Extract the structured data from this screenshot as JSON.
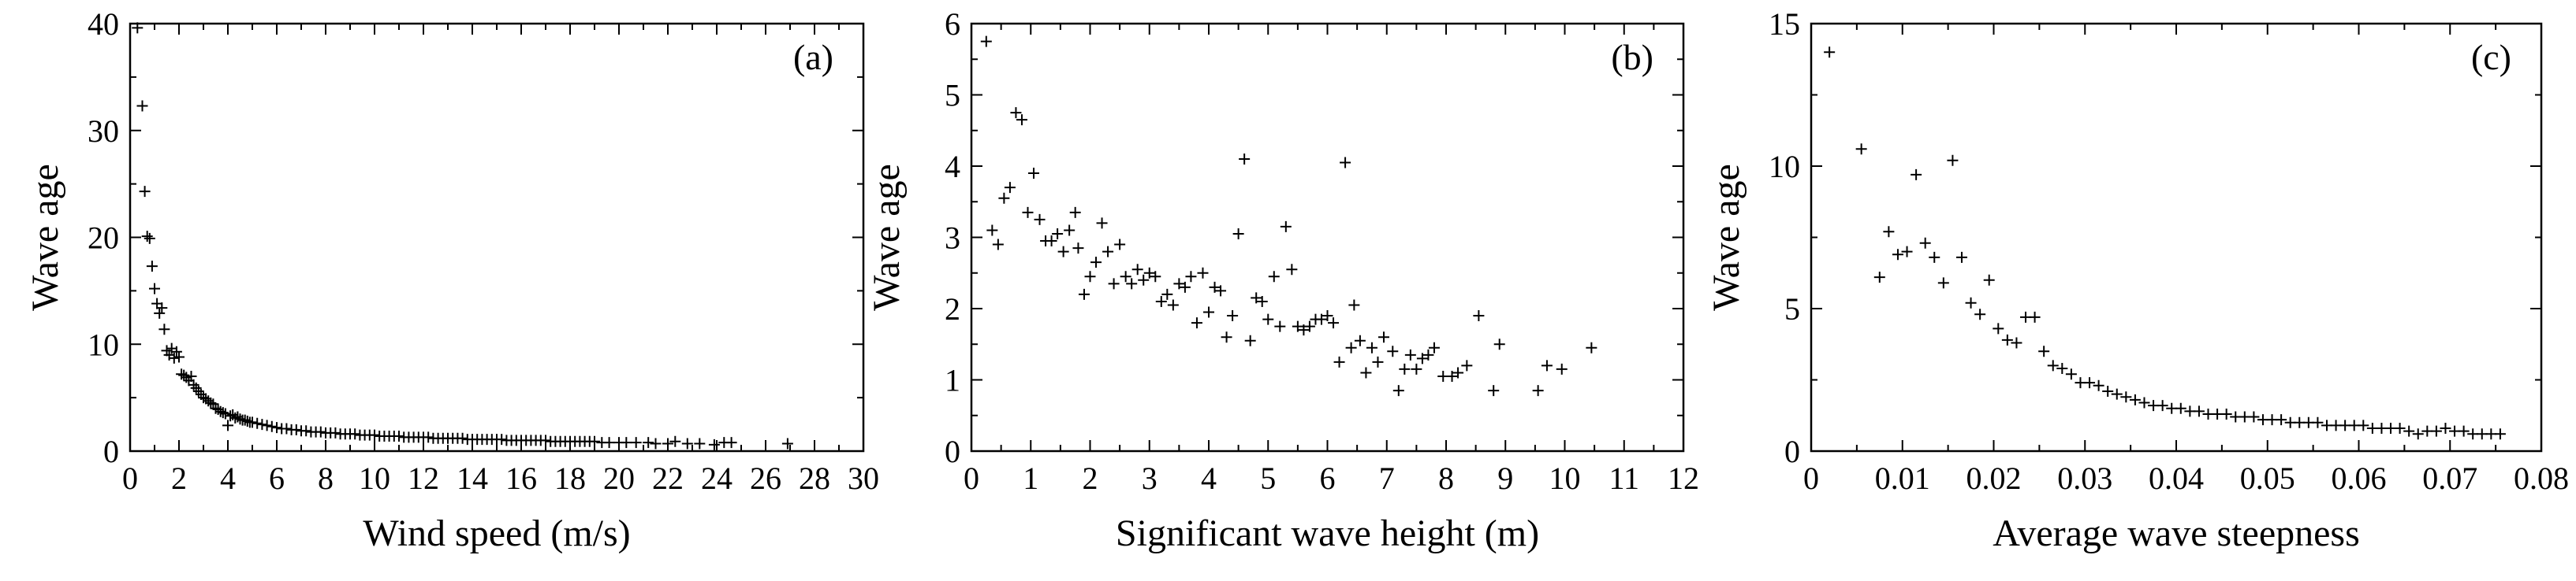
{
  "chart_data": [
    {
      "type": "scatter",
      "panel_label": "(a)",
      "xlabel": "Wind speed (m/s)",
      "ylabel": "Wave age",
      "xlim": [
        0,
        30
      ],
      "ylim": [
        0,
        40
      ],
      "xticks": [
        "0",
        "2",
        "4",
        "6",
        "8",
        "10",
        "12",
        "14",
        "16",
        "18",
        "20",
        "22",
        "24",
        "26",
        "28",
        "30"
      ],
      "yticks": [
        "0",
        "10",
        "20",
        "30",
        "40"
      ],
      "marker": "+",
      "points": [
        [
          0.3,
          39.6
        ],
        [
          0.5,
          32.3
        ],
        [
          0.6,
          24.3
        ],
        [
          0.7,
          20.1
        ],
        [
          0.8,
          19.9
        ],
        [
          0.9,
          17.3
        ],
        [
          1.0,
          15.2
        ],
        [
          1.1,
          13.8
        ],
        [
          1.2,
          12.9
        ],
        [
          1.3,
          13.4
        ],
        [
          1.4,
          11.4
        ],
        [
          1.5,
          9.4
        ],
        [
          1.6,
          9.0
        ],
        [
          1.7,
          9.6
        ],
        [
          1.8,
          8.7
        ],
        [
          1.9,
          9.3
        ],
        [
          2.0,
          8.8
        ],
        [
          2.1,
          7.2
        ],
        [
          2.2,
          7.1
        ],
        [
          2.3,
          6.9
        ],
        [
          2.4,
          6.6
        ],
        [
          2.5,
          7.0
        ],
        [
          2.6,
          6.2
        ],
        [
          2.7,
          5.9
        ],
        [
          2.8,
          5.6
        ],
        [
          2.9,
          5.3
        ],
        [
          3.0,
          5.0
        ],
        [
          3.1,
          4.9
        ],
        [
          3.2,
          4.7
        ],
        [
          3.3,
          4.5
        ],
        [
          3.4,
          4.4
        ],
        [
          3.5,
          4.0
        ],
        [
          3.6,
          3.9
        ],
        [
          3.7,
          3.7
        ],
        [
          3.8,
          3.6
        ],
        [
          3.9,
          3.5
        ],
        [
          4.0,
          2.4
        ],
        [
          4.1,
          3.3
        ],
        [
          4.2,
          3.4
        ],
        [
          4.3,
          3.1
        ],
        [
          4.4,
          3.2
        ],
        [
          4.5,
          3.0
        ],
        [
          4.6,
          2.9
        ],
        [
          4.7,
          2.9
        ],
        [
          4.8,
          2.8
        ],
        [
          4.9,
          2.7
        ],
        [
          5.0,
          2.7
        ],
        [
          5.2,
          2.6
        ],
        [
          5.4,
          2.5
        ],
        [
          5.6,
          2.4
        ],
        [
          5.8,
          2.3
        ],
        [
          6.0,
          2.2
        ],
        [
          6.2,
          2.1
        ],
        [
          6.4,
          2.1
        ],
        [
          6.6,
          2.0
        ],
        [
          6.8,
          2.0
        ],
        [
          7.0,
          1.9
        ],
        [
          7.2,
          1.9
        ],
        [
          7.4,
          1.8
        ],
        [
          7.6,
          1.8
        ],
        [
          7.8,
          1.8
        ],
        [
          8.0,
          1.7
        ],
        [
          8.2,
          1.7
        ],
        [
          8.4,
          1.7
        ],
        [
          8.6,
          1.6
        ],
        [
          8.8,
          1.6
        ],
        [
          9.0,
          1.6
        ],
        [
          9.2,
          1.6
        ],
        [
          9.4,
          1.5
        ],
        [
          9.6,
          1.5
        ],
        [
          9.8,
          1.5
        ],
        [
          10.0,
          1.5
        ],
        [
          10.2,
          1.4
        ],
        [
          10.4,
          1.4
        ],
        [
          10.6,
          1.4
        ],
        [
          10.8,
          1.4
        ],
        [
          11.0,
          1.4
        ],
        [
          11.2,
          1.3
        ],
        [
          11.4,
          1.3
        ],
        [
          11.6,
          1.3
        ],
        [
          11.8,
          1.3
        ],
        [
          12.0,
          1.3
        ],
        [
          12.2,
          1.3
        ],
        [
          12.4,
          1.2
        ],
        [
          12.6,
          1.2
        ],
        [
          12.8,
          1.2
        ],
        [
          13.0,
          1.2
        ],
        [
          13.2,
          1.2
        ],
        [
          13.4,
          1.2
        ],
        [
          13.6,
          1.2
        ],
        [
          13.8,
          1.1
        ],
        [
          14.0,
          1.1
        ],
        [
          14.2,
          1.1
        ],
        [
          14.4,
          1.1
        ],
        [
          14.6,
          1.1
        ],
        [
          14.8,
          1.1
        ],
        [
          15.0,
          1.1
        ],
        [
          15.2,
          1.1
        ],
        [
          15.4,
          1.0
        ],
        [
          15.6,
          1.0
        ],
        [
          15.8,
          1.0
        ],
        [
          16.0,
          1.0
        ],
        [
          16.2,
          1.0
        ],
        [
          16.4,
          1.0
        ],
        [
          16.6,
          1.0
        ],
        [
          16.8,
          1.0
        ],
        [
          17.0,
          1.0
        ],
        [
          17.2,
          0.9
        ],
        [
          17.4,
          0.9
        ],
        [
          17.6,
          0.9
        ],
        [
          17.8,
          0.9
        ],
        [
          18.0,
          0.9
        ],
        [
          18.2,
          0.9
        ],
        [
          18.4,
          0.9
        ],
        [
          18.6,
          0.9
        ],
        [
          18.8,
          0.9
        ],
        [
          19.0,
          0.9
        ],
        [
          19.3,
          0.8
        ],
        [
          19.6,
          0.8
        ],
        [
          20.0,
          0.8
        ],
        [
          20.3,
          0.8
        ],
        [
          20.7,
          0.8
        ],
        [
          21.2,
          0.8
        ],
        [
          21.5,
          0.7
        ],
        [
          22.0,
          0.7
        ],
        [
          22.3,
          0.9
        ],
        [
          22.8,
          0.7
        ],
        [
          23.3,
          0.7
        ],
        [
          23.9,
          0.6
        ],
        [
          24.3,
          0.8
        ],
        [
          24.6,
          0.8
        ],
        [
          26.9,
          0.7
        ]
      ]
    },
    {
      "type": "scatter",
      "panel_label": "(b)",
      "xlabel": "Significant wave height (m)",
      "ylabel": "Wave age",
      "xlim": [
        0,
        12
      ],
      "ylim": [
        0,
        6
      ],
      "xticks": [
        "0",
        "1",
        "2",
        "3",
        "4",
        "5",
        "6",
        "7",
        "8",
        "9",
        "10",
        "11",
        "12"
      ],
      "yticks": [
        "0",
        "1",
        "2",
        "3",
        "4",
        "5",
        "6"
      ],
      "marker": "+",
      "points": [
        [
          0.25,
          5.75
        ],
        [
          0.35,
          3.1
        ],
        [
          0.45,
          2.9
        ],
        [
          0.55,
          3.55
        ],
        [
          0.65,
          3.7
        ],
        [
          0.75,
          4.75
        ],
        [
          0.85,
          4.65
        ],
        [
          0.95,
          3.35
        ],
        [
          1.05,
          3.9
        ],
        [
          1.15,
          3.25
        ],
        [
          1.25,
          2.95
        ],
        [
          1.35,
          2.95
        ],
        [
          1.45,
          3.05
        ],
        [
          1.55,
          2.8
        ],
        [
          1.65,
          3.1
        ],
        [
          1.75,
          3.35
        ],
        [
          1.8,
          2.85
        ],
        [
          1.9,
          2.2
        ],
        [
          2.0,
          2.45
        ],
        [
          2.1,
          2.65
        ],
        [
          2.2,
          3.2
        ],
        [
          2.3,
          2.8
        ],
        [
          2.4,
          2.35
        ],
        [
          2.5,
          2.9
        ],
        [
          2.6,
          2.45
        ],
        [
          2.7,
          2.35
        ],
        [
          2.8,
          2.55
        ],
        [
          2.9,
          2.4
        ],
        [
          3.0,
          2.5
        ],
        [
          3.1,
          2.45
        ],
        [
          3.2,
          2.1
        ],
        [
          3.3,
          2.2
        ],
        [
          3.4,
          2.05
        ],
        [
          3.5,
          2.35
        ],
        [
          3.6,
          2.3
        ],
        [
          3.7,
          2.45
        ],
        [
          3.8,
          1.8
        ],
        [
          3.9,
          2.5
        ],
        [
          4.0,
          1.95
        ],
        [
          4.1,
          2.3
        ],
        [
          4.2,
          2.25
        ],
        [
          4.3,
          1.6
        ],
        [
          4.4,
          1.9
        ],
        [
          4.5,
          3.05
        ],
        [
          4.6,
          4.1
        ],
        [
          4.7,
          1.55
        ],
        [
          4.8,
          2.15
        ],
        [
          4.9,
          2.1
        ],
        [
          5.0,
          1.85
        ],
        [
          5.1,
          2.45
        ],
        [
          5.2,
          1.75
        ],
        [
          5.3,
          3.15
        ],
        [
          5.4,
          2.55
        ],
        [
          5.5,
          1.75
        ],
        [
          5.6,
          1.7
        ],
        [
          5.7,
          1.75
        ],
        [
          5.8,
          1.85
        ],
        [
          5.9,
          1.85
        ],
        [
          6.0,
          1.9
        ],
        [
          6.1,
          1.8
        ],
        [
          6.2,
          1.25
        ],
        [
          6.3,
          4.05
        ],
        [
          6.4,
          1.45
        ],
        [
          6.45,
          2.05
        ],
        [
          6.55,
          1.55
        ],
        [
          6.65,
          1.1
        ],
        [
          6.75,
          1.45
        ],
        [
          6.85,
          1.25
        ],
        [
          6.95,
          1.6
        ],
        [
          7.1,
          1.4
        ],
        [
          7.2,
          0.85
        ],
        [
          7.3,
          1.15
        ],
        [
          7.4,
          1.35
        ],
        [
          7.5,
          1.15
        ],
        [
          7.6,
          1.3
        ],
        [
          7.7,
          1.35
        ],
        [
          7.8,
          1.45
        ],
        [
          7.95,
          1.05
        ],
        [
          8.1,
          1.05
        ],
        [
          8.2,
          1.1
        ],
        [
          8.35,
          1.2
        ],
        [
          8.55,
          1.9
        ],
        [
          8.8,
          0.85
        ],
        [
          8.9,
          1.5
        ],
        [
          9.55,
          0.85
        ],
        [
          9.7,
          1.2
        ],
        [
          9.95,
          1.15
        ],
        [
          10.45,
          1.45
        ]
      ]
    },
    {
      "type": "scatter",
      "panel_label": "(c)",
      "xlabel": "Average wave steepness",
      "ylabel": "Wave age",
      "xlim": [
        0,
        0.08
      ],
      "ylim": [
        0,
        15
      ],
      "xticks": [
        "0",
        "0.01",
        "0.02",
        "0.03",
        "0.04",
        "0.05",
        "0.06",
        "0.07",
        "0.08"
      ],
      "yticks": [
        "0",
        "5",
        "10",
        "15"
      ],
      "marker": "+",
      "points": [
        [
          0.002,
          14.0
        ],
        [
          0.0055,
          10.6
        ],
        [
          0.0075,
          6.1
        ],
        [
          0.0085,
          7.7
        ],
        [
          0.0095,
          6.9
        ],
        [
          0.0105,
          7.0
        ],
        [
          0.0115,
          9.7
        ],
        [
          0.0125,
          7.3
        ],
        [
          0.0135,
          6.8
        ],
        [
          0.0145,
          5.9
        ],
        [
          0.0155,
          10.2
        ],
        [
          0.0165,
          6.8
        ],
        [
          0.0175,
          5.2
        ],
        [
          0.0185,
          4.8
        ],
        [
          0.0195,
          6.0
        ],
        [
          0.0205,
          4.3
        ],
        [
          0.0215,
          3.9
        ],
        [
          0.0225,
          3.8
        ],
        [
          0.0235,
          4.7
        ],
        [
          0.0245,
          4.7
        ],
        [
          0.0255,
          3.5
        ],
        [
          0.0265,
          3.0
        ],
        [
          0.0275,
          2.9
        ],
        [
          0.0285,
          2.7
        ],
        [
          0.0295,
          2.4
        ],
        [
          0.0305,
          2.4
        ],
        [
          0.0315,
          2.3
        ],
        [
          0.0325,
          2.1
        ],
        [
          0.0335,
          2.0
        ],
        [
          0.0345,
          1.9
        ],
        [
          0.0355,
          1.8
        ],
        [
          0.0365,
          1.7
        ],
        [
          0.0375,
          1.6
        ],
        [
          0.0385,
          1.6
        ],
        [
          0.0395,
          1.5
        ],
        [
          0.0405,
          1.5
        ],
        [
          0.0415,
          1.4
        ],
        [
          0.0425,
          1.4
        ],
        [
          0.0435,
          1.3
        ],
        [
          0.0445,
          1.3
        ],
        [
          0.0455,
          1.3
        ],
        [
          0.0465,
          1.2
        ],
        [
          0.0475,
          1.2
        ],
        [
          0.0485,
          1.2
        ],
        [
          0.0495,
          1.1
        ],
        [
          0.0505,
          1.1
        ],
        [
          0.0515,
          1.1
        ],
        [
          0.0525,
          1.0
        ],
        [
          0.0535,
          1.0
        ],
        [
          0.0545,
          1.0
        ],
        [
          0.0555,
          1.0
        ],
        [
          0.0565,
          0.9
        ],
        [
          0.0575,
          0.9
        ],
        [
          0.0585,
          0.9
        ],
        [
          0.0595,
          0.9
        ],
        [
          0.0605,
          0.9
        ],
        [
          0.0615,
          0.8
        ],
        [
          0.0625,
          0.8
        ],
        [
          0.0635,
          0.8
        ],
        [
          0.0645,
          0.8
        ],
        [
          0.0655,
          0.7
        ],
        [
          0.0665,
          0.6
        ],
        [
          0.0675,
          0.7
        ],
        [
          0.0685,
          0.7
        ],
        [
          0.0695,
          0.8
        ],
        [
          0.0705,
          0.7
        ],
        [
          0.0715,
          0.7
        ],
        [
          0.0725,
          0.6
        ],
        [
          0.0735,
          0.6
        ],
        [
          0.0745,
          0.6
        ],
        [
          0.0755,
          0.6
        ]
      ]
    }
  ]
}
